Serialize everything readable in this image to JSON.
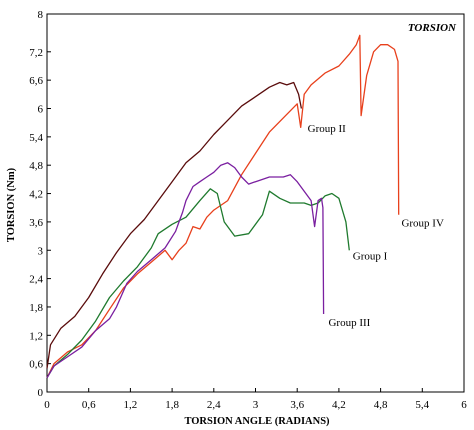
{
  "chart_data": {
    "type": "line",
    "title": "TORSION",
    "xlabel": "TORSION ANGLE (RADIANS)",
    "ylabel": "TORSION (Nm)",
    "xlim": [
      0,
      6
    ],
    "ylim": [
      0,
      8
    ],
    "x_ticks": [
      0,
      0.6,
      1.2,
      1.8,
      2.4,
      3,
      3.6,
      4.2,
      4.8,
      5.4,
      6
    ],
    "x_tick_labels": [
      "0",
      "0,6",
      "1,2",
      "1,8",
      "2,4",
      "3",
      "3,6",
      "4,2",
      "4,8",
      "5,4",
      "6"
    ],
    "y_ticks": [
      0,
      0.6,
      1.2,
      1.8,
      2.4,
      3,
      3.6,
      4.2,
      4.8,
      5.4,
      6,
      6.6,
      7.2,
      8
    ],
    "y_tick_labels": [
      "0",
      "0,6",
      "1,2",
      "1,8",
      "2,4",
      "3",
      "3,6",
      "4,2",
      "4,8",
      "5,4",
      "6",
      "6,6",
      "7,2",
      "8"
    ],
    "grid": false,
    "series": [
      {
        "name": "Group II",
        "color": "#5a0c0c",
        "points": [
          [
            0,
            0.5
          ],
          [
            0.05,
            1.0
          ],
          [
            0.2,
            1.35
          ],
          [
            0.4,
            1.6
          ],
          [
            0.6,
            2.0
          ],
          [
            0.8,
            2.5
          ],
          [
            1.0,
            2.95
          ],
          [
            1.2,
            3.35
          ],
          [
            1.4,
            3.65
          ],
          [
            1.6,
            4.05
          ],
          [
            1.8,
            4.45
          ],
          [
            2.0,
            4.85
          ],
          [
            2.2,
            5.1
          ],
          [
            2.4,
            5.45
          ],
          [
            2.6,
            5.75
          ],
          [
            2.8,
            6.05
          ],
          [
            3.0,
            6.25
          ],
          [
            3.2,
            6.45
          ],
          [
            3.35,
            6.55
          ],
          [
            3.45,
            6.5
          ],
          [
            3.55,
            6.55
          ],
          [
            3.62,
            6.3
          ],
          [
            3.66,
            6.0
          ]
        ]
      },
      {
        "name": "Group IV",
        "color": "#e8401c",
        "points": [
          [
            0,
            0.3
          ],
          [
            0.1,
            0.6
          ],
          [
            0.3,
            0.85
          ],
          [
            0.5,
            1.0
          ],
          [
            0.7,
            1.3
          ],
          [
            0.9,
            1.75
          ],
          [
            1.1,
            2.2
          ],
          [
            1.3,
            2.5
          ],
          [
            1.5,
            2.75
          ],
          [
            1.7,
            3.0
          ],
          [
            1.8,
            2.8
          ],
          [
            1.9,
            3.0
          ],
          [
            2.0,
            3.15
          ],
          [
            2.1,
            3.5
          ],
          [
            2.2,
            3.45
          ],
          [
            2.3,
            3.7
          ],
          [
            2.4,
            3.85
          ],
          [
            2.6,
            4.05
          ],
          [
            2.8,
            4.6
          ],
          [
            3.0,
            5.05
          ],
          [
            3.2,
            5.5
          ],
          [
            3.4,
            5.8
          ],
          [
            3.6,
            6.1
          ],
          [
            3.65,
            5.6
          ],
          [
            3.7,
            6.3
          ],
          [
            3.8,
            6.5
          ],
          [
            4.0,
            6.75
          ],
          [
            4.2,
            6.9
          ],
          [
            4.35,
            7.15
          ],
          [
            4.45,
            7.35
          ],
          [
            4.5,
            7.55
          ],
          [
            4.52,
            5.85
          ],
          [
            4.6,
            6.7
          ],
          [
            4.7,
            7.2
          ],
          [
            4.8,
            7.35
          ],
          [
            4.9,
            7.35
          ],
          [
            5.0,
            7.25
          ],
          [
            5.05,
            7.0
          ],
          [
            5.06,
            3.75
          ]
        ]
      },
      {
        "name": "Group I",
        "color": "#1f7a2e",
        "points": [
          [
            0,
            0.3
          ],
          [
            0.1,
            0.55
          ],
          [
            0.3,
            0.8
          ],
          [
            0.5,
            1.1
          ],
          [
            0.7,
            1.5
          ],
          [
            0.9,
            2.0
          ],
          [
            1.1,
            2.35
          ],
          [
            1.3,
            2.65
          ],
          [
            1.5,
            3.05
          ],
          [
            1.6,
            3.35
          ],
          [
            1.8,
            3.55
          ],
          [
            2.0,
            3.7
          ],
          [
            2.2,
            4.05
          ],
          [
            2.35,
            4.3
          ],
          [
            2.45,
            4.2
          ],
          [
            2.55,
            3.6
          ],
          [
            2.7,
            3.3
          ],
          [
            2.9,
            3.35
          ],
          [
            3.1,
            3.75
          ],
          [
            3.2,
            4.25
          ],
          [
            3.35,
            4.1
          ],
          [
            3.5,
            4.0
          ],
          [
            3.7,
            4.0
          ],
          [
            3.8,
            3.95
          ],
          [
            3.9,
            4.0
          ],
          [
            4.0,
            4.15
          ],
          [
            4.1,
            4.2
          ],
          [
            4.2,
            4.1
          ],
          [
            4.3,
            3.6
          ],
          [
            4.35,
            3.0
          ]
        ]
      },
      {
        "name": "Group III",
        "color": "#7a1fa0",
        "points": [
          [
            0,
            0.3
          ],
          [
            0.1,
            0.55
          ],
          [
            0.3,
            0.75
          ],
          [
            0.5,
            0.95
          ],
          [
            0.7,
            1.3
          ],
          [
            0.9,
            1.55
          ],
          [
            1.0,
            1.8
          ],
          [
            1.15,
            2.3
          ],
          [
            1.3,
            2.55
          ],
          [
            1.5,
            2.8
          ],
          [
            1.7,
            3.05
          ],
          [
            1.85,
            3.4
          ],
          [
            1.9,
            3.6
          ],
          [
            1.95,
            3.8
          ],
          [
            2.0,
            4.05
          ],
          [
            2.1,
            4.35
          ],
          [
            2.2,
            4.45
          ],
          [
            2.3,
            4.55
          ],
          [
            2.4,
            4.65
          ],
          [
            2.5,
            4.8
          ],
          [
            2.6,
            4.85
          ],
          [
            2.7,
            4.75
          ],
          [
            2.8,
            4.55
          ],
          [
            2.9,
            4.4
          ],
          [
            3.0,
            4.45
          ],
          [
            3.1,
            4.5
          ],
          [
            3.2,
            4.55
          ],
          [
            3.4,
            4.55
          ],
          [
            3.5,
            4.6
          ],
          [
            3.6,
            4.45
          ],
          [
            3.7,
            4.25
          ],
          [
            3.8,
            4.05
          ],
          [
            3.85,
            3.5
          ],
          [
            3.9,
            4.05
          ],
          [
            3.95,
            4.1
          ],
          [
            3.97,
            3.9
          ],
          [
            3.98,
            1.65
          ]
        ]
      }
    ],
    "annotations": [
      {
        "text": "Group II",
        "x": 3.75,
        "y": 5.5
      },
      {
        "text": "Group IV",
        "x": 5.1,
        "y": 3.5
      },
      {
        "text": "Group I",
        "x": 4.4,
        "y": 2.8
      },
      {
        "text": "Group III",
        "x": 4.05,
        "y": 1.4
      }
    ]
  }
}
